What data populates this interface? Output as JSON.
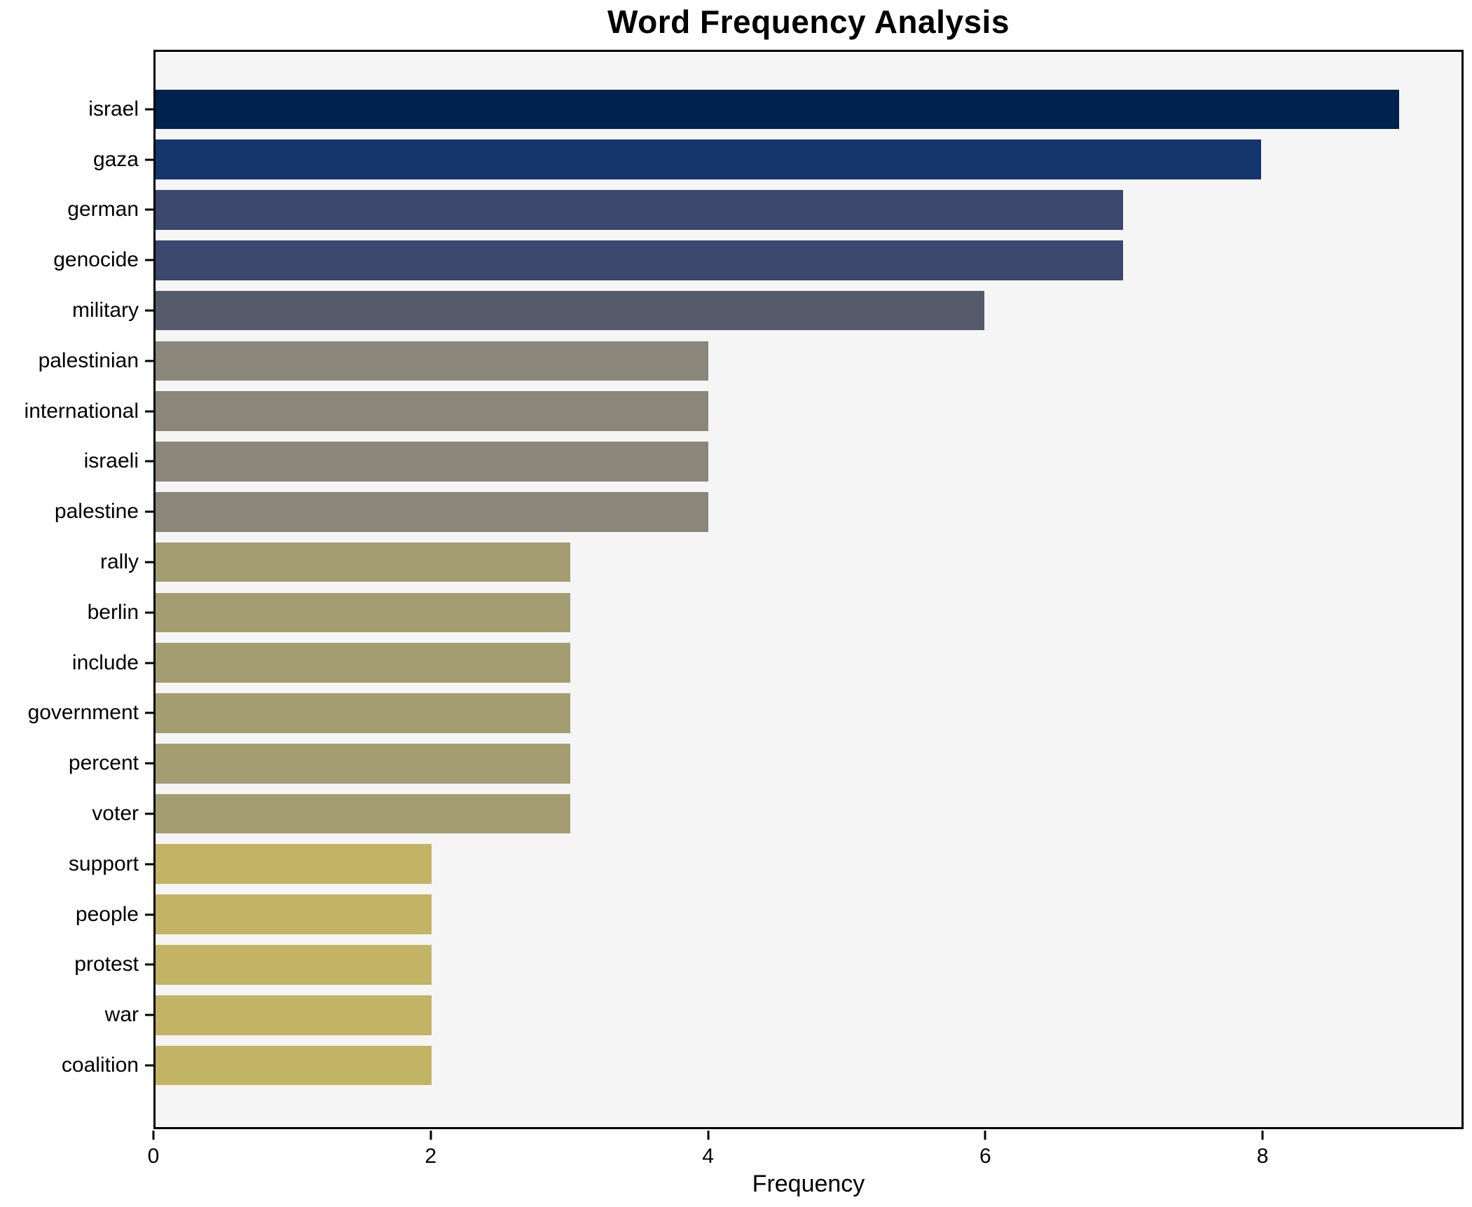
{
  "chart_data": {
    "type": "bar",
    "orientation": "horizontal",
    "title": "Word Frequency Analysis",
    "xlabel": "Frequency",
    "ylabel": "",
    "categories": [
      "israel",
      "gaza",
      "german",
      "genocide",
      "military",
      "palestinian",
      "international",
      "israeli",
      "palestine",
      "rally",
      "berlin",
      "include",
      "government",
      "percent",
      "voter",
      "support",
      "people",
      "protest",
      "war",
      "coalition"
    ],
    "values": [
      9,
      8,
      7,
      7,
      6,
      4,
      4,
      4,
      4,
      3,
      3,
      3,
      3,
      3,
      3,
      2,
      2,
      2,
      2,
      2
    ],
    "bar_colors": [
      "#00224e",
      "#15356e",
      "#3b476c",
      "#3b476c",
      "#555b6b",
      "#8a877a",
      "#8a877a",
      "#8a877a",
      "#8a877a",
      "#a49d72",
      "#a49d72",
      "#a49d72",
      "#a49d72",
      "#a49d72",
      "#a49d72",
      "#c3b365",
      "#c3b365",
      "#c3b365",
      "#c3b365",
      "#c3b365"
    ],
    "xlim": [
      0,
      9.45
    ],
    "xticks": [
      0,
      2,
      4,
      6,
      8
    ],
    "grid": false,
    "legend": false,
    "plot_background": "#f5f5f5",
    "spine_color": "#000000",
    "text_color": "#000000"
  }
}
